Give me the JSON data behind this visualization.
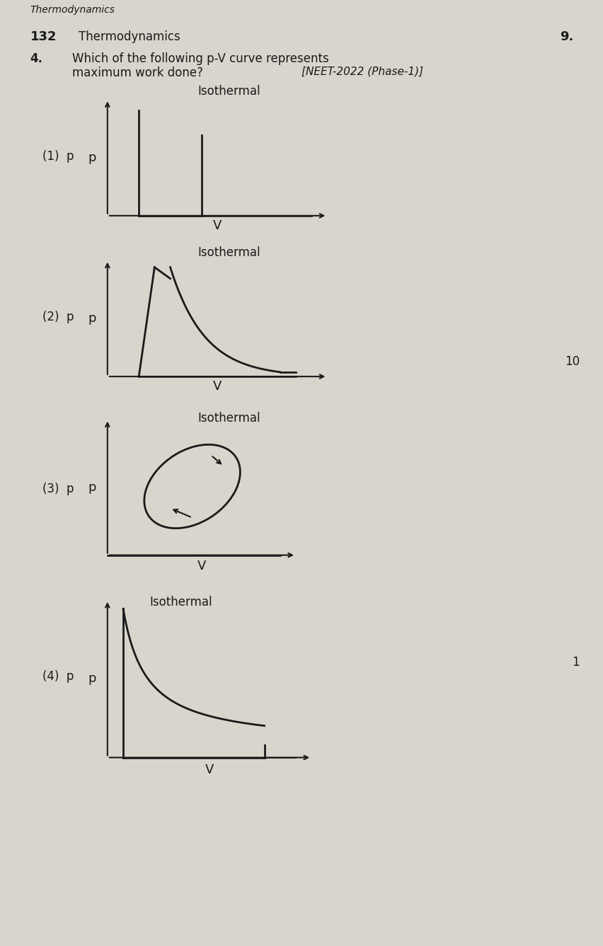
{
  "bg": "#d8d5cc",
  "lc": "#1a1a1a",
  "tc": "#1a1a1a",
  "title": "132 Thermodynamics",
  "page_num": "9.",
  "q_num": "4.",
  "q_line1": "Which of the following p-V curve represents",
  "q_line2": "maximum work done?",
  "q_ref": "[NEET-2022 (Phase-1)]",
  "label_iso": "Isothermal",
  "label_p": "p",
  "label_v": "V",
  "opts": [
    "(1)",
    "(2)",
    "(3)",
    "(4)"
  ],
  "right_nums": [
    "10",
    "1"
  ]
}
